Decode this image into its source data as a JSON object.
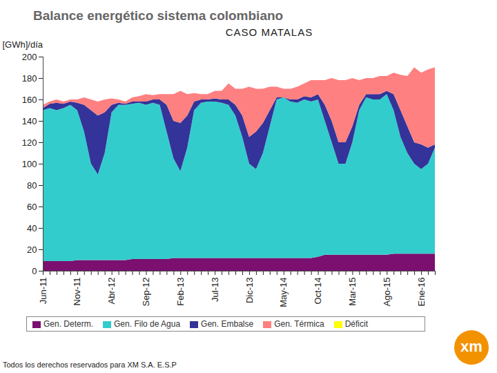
{
  "chart_data": {
    "type": "area",
    "title": "Balance energético sistema colombiano",
    "subtitle": "CASO MATALAS",
    "y_label": "[GWh]/día",
    "footer": "Todos los derechos reservados para XM S.A. E.S.P",
    "logo": "xm",
    "stacked": true,
    "grid": false,
    "legend": "bottom",
    "categories": [
      "Jun-11",
      null,
      null,
      null,
      null,
      "Nov-11",
      null,
      null,
      null,
      null,
      "Abr-12",
      null,
      null,
      null,
      null,
      "Sep-12",
      null,
      null,
      null,
      null,
      "Feb-13",
      null,
      null,
      null,
      null,
      "Jul-13",
      null,
      null,
      null,
      null,
      "Dic-13",
      null,
      null,
      null,
      null,
      "May-14",
      null,
      null,
      null,
      null,
      "Oct-14",
      null,
      null,
      null,
      null,
      "Mar-15",
      null,
      null,
      null,
      null,
      "Ago-15",
      null,
      null,
      null,
      null,
      "Ene-16",
      null,
      null
    ],
    "ylim": [
      0,
      200
    ],
    "yticks": [
      0,
      20,
      40,
      60,
      80,
      100,
      120,
      140,
      160,
      180,
      200
    ],
    "series": [
      {
        "name": "Gen. Determ.",
        "color": "#7b1070",
        "values": [
          9,
          9,
          9,
          9,
          9,
          10,
          10,
          10,
          10,
          10,
          10,
          10,
          10,
          11,
          11,
          11,
          11,
          11,
          11,
          12,
          12,
          12,
          12,
          12,
          12,
          12,
          12,
          12,
          12,
          12,
          12,
          12,
          12,
          12,
          12,
          12,
          12,
          12,
          12,
          12,
          13,
          15,
          15,
          15,
          15,
          15,
          15,
          15,
          15,
          15,
          15,
          16,
          16,
          16,
          16,
          16,
          16,
          16
        ]
      },
      {
        "name": "Gen. Filo de Agua",
        "color": "#33cccc",
        "values": [
          141,
          143,
          141,
          143,
          146,
          140,
          120,
          90,
          80,
          100,
          138,
          145,
          145,
          145,
          146,
          144,
          146,
          144,
          119,
          93,
          81,
          103,
          138,
          145,
          146,
          146,
          145,
          143,
          133,
          113,
          88,
          83,
          98,
          123,
          148,
          150,
          146,
          145,
          148,
          146,
          147,
          125,
          105,
          85,
          85,
          105,
          135,
          147,
          145,
          145,
          150,
          134,
          109,
          94,
          84,
          79,
          84,
          99
        ]
      },
      {
        "name": "Gen. Embalse",
        "color": "#333399",
        "values": [
          2,
          4,
          7,
          4,
          3,
          7,
          25,
          50,
          55,
          38,
          7,
          2,
          1,
          2,
          1,
          3,
          3,
          5,
          25,
          35,
          45,
          30,
          8,
          3,
          2,
          3,
          3,
          5,
          10,
          20,
          25,
          35,
          28,
          15,
          2,
          0,
          2,
          3,
          3,
          4,
          5,
          15,
          20,
          20,
          20,
          15,
          5,
          3,
          5,
          5,
          3,
          15,
          25,
          25,
          20,
          23,
          15,
          3
        ]
      },
      {
        "name": "Gen. Térmica",
        "color": "#ff8080",
        "values": [
          3,
          2,
          3,
          2,
          2,
          3,
          7,
          10,
          13,
          12,
          6,
          3,
          2,
          4,
          5,
          7,
          4,
          5,
          10,
          25,
          30,
          20,
          8,
          5,
          5,
          7,
          8,
          15,
          15,
          25,
          47,
          40,
          32,
          22,
          10,
          8,
          10,
          12,
          12,
          16,
          13,
          23,
          40,
          58,
          58,
          45,
          23,
          15,
          15,
          17,
          14,
          20,
          33,
          47,
          70,
          67,
          73,
          72
        ]
      },
      {
        "name": "Déficit",
        "color": "#ffff00",
        "values": [
          0,
          0,
          0,
          0,
          0,
          0,
          0,
          0,
          0,
          0,
          0,
          0,
          0,
          0,
          0,
          0,
          0,
          0,
          0,
          0,
          0,
          0,
          0,
          0,
          0,
          0,
          0,
          0,
          0,
          0,
          0,
          0,
          0,
          0,
          0,
          0,
          0,
          0,
          0,
          0,
          0,
          0,
          0,
          0,
          0,
          0,
          0,
          0,
          0,
          0,
          0,
          0,
          0,
          0,
          0,
          0,
          0,
          0
        ]
      }
    ]
  }
}
